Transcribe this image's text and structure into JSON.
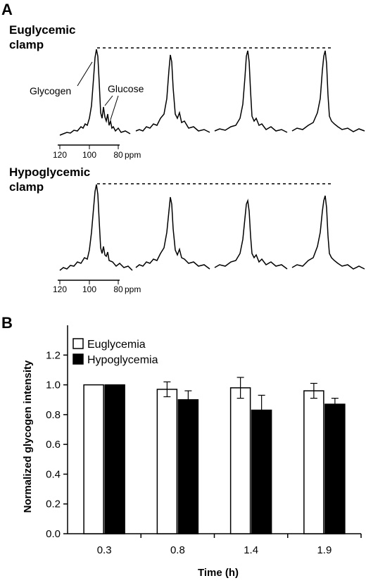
{
  "panel_a": {
    "letter": "A",
    "conditions": [
      {
        "label_line1": "Euglycemic",
        "label_line2": "clamp"
      },
      {
        "label_line1": "Hypoglycemic",
        "label_line2": "clamp"
      }
    ],
    "peak_labels": {
      "glycogen": "Glycogen",
      "glucose": "Glucose"
    },
    "ppm_ticks": [
      "120",
      "100",
      "80"
    ],
    "ppm_unit": "ppm"
  },
  "chart_data": {
    "type": "bar",
    "panel_letter": "B",
    "categories": [
      "0.3",
      "0.8",
      "1.4",
      "1.9"
    ],
    "series": [
      {
        "name": "Euglycemia",
        "color": "#ffffff",
        "values": [
          1.0,
          0.97,
          0.98,
          0.96
        ],
        "errors": [
          0,
          0.05,
          0.07,
          0.05
        ]
      },
      {
        "name": "Hypoglycemia",
        "color": "#000000",
        "values": [
          1.0,
          0.9,
          0.83,
          0.87
        ],
        "errors": [
          0,
          0.06,
          0.1,
          0.04
        ]
      }
    ],
    "xlabel": "Time (h)",
    "ylabel": "Normalized glycogen intensity",
    "ylim": [
      0,
      1.4
    ],
    "yticks": [
      "0.0",
      "0.2",
      "0.4",
      "0.6",
      "0.8",
      "1.0",
      "1.2"
    ],
    "legend_position": "top-left",
    "grid": false
  }
}
